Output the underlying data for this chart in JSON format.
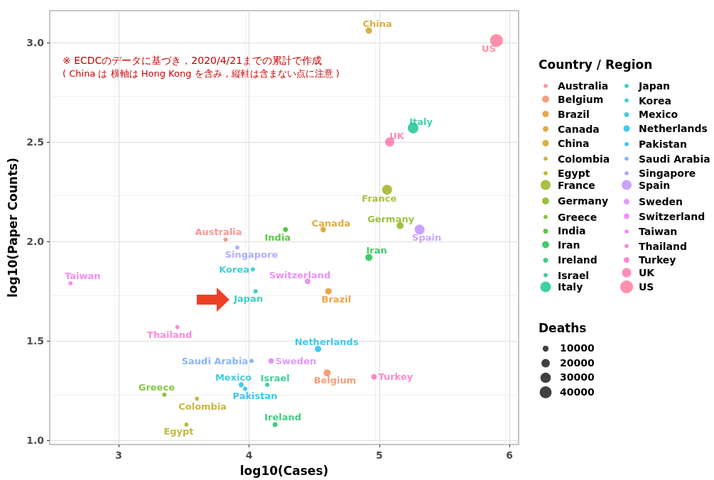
{
  "chart_data": {
    "type": "bubble",
    "xlabel": "log10(Cases)",
    "ylabel": "log10(Paper Counts)",
    "legend_title": "Country / Region",
    "annotations": [
      "※ ECDCのデータに基づき，2020/4/21までの累計で作成",
      "( China は 横軸は Hong Kong を含み，縦軸は含まない点に注意 )",
      "Deaths"
    ],
    "xlim": [
      2.47,
      6.07
    ],
    "xticks": [
      3,
      4,
      5,
      6
    ],
    "ylim": [
      0.98,
      3.16
    ],
    "yticks": [
      {
        "value": 1,
        "label": "1.0"
      },
      {
        "value": 1.5,
        "label": "1.5"
      },
      {
        "value": 2,
        "label": "2.0"
      },
      {
        "value": 2.5,
        "label": "2.5"
      },
      {
        "value": 3,
        "label": "3.0"
      }
    ],
    "grid": true,
    "legend": "right",
    "marker": "circle",
    "size_legend": [
      10000,
      20000,
      30000,
      40000
    ],
    "series": [
      {
        "name": "Australia",
        "color": "#F8766D",
        "x": [
          3.82
        ],
        "values": [
          2.01
        ],
        "sizes": [
          5100
        ]
      },
      {
        "name": "Belgium",
        "color": "#F07F4F",
        "x": [
          4.6
        ],
        "values": [
          1.34
        ],
        "sizes": [
          14000
        ]
      },
      {
        "name": "Brazil",
        "color": "#E68613",
        "x": [
          4.61
        ],
        "values": [
          1.75
        ],
        "sizes": [
          11500
        ]
      },
      {
        "name": "Canada",
        "color": "#DA8F00",
        "x": [
          4.57
        ],
        "values": [
          2.06
        ],
        "sizes": [
          9000
        ]
      },
      {
        "name": "China",
        "color": "#CD9600",
        "x": [
          4.92
        ],
        "values": [
          3.06
        ],
        "sizes": [
          11500
        ]
      },
      {
        "name": "Colombia",
        "color": "#BE9C00",
        "x": [
          3.6
        ],
        "values": [
          1.21
        ],
        "sizes": [
          5100
        ]
      },
      {
        "name": "Egypt",
        "color": "#ABA300",
        "x": [
          3.52
        ],
        "values": [
          1.08
        ],
        "sizes": [
          5100
        ]
      },
      {
        "name": "France",
        "color": "#96A900",
        "x": [
          5.06
        ],
        "values": [
          2.26
        ],
        "sizes": [
          28000
        ]
      },
      {
        "name": "Germany",
        "color": "#7CAE00",
        "x": [
          5.16
        ],
        "values": [
          2.08
        ],
        "sizes": [
          14000
        ]
      },
      {
        "name": "Greece",
        "color": "#5BB300",
        "x": [
          3.35
        ],
        "values": [
          1.23
        ],
        "sizes": [
          5100
        ]
      },
      {
        "name": "India",
        "color": "#1EB600",
        "x": [
          4.28
        ],
        "values": [
          2.06
        ],
        "sizes": [
          7000
        ]
      },
      {
        "name": "Iran",
        "color": "#00B93A",
        "x": [
          4.92
        ],
        "values": [
          1.92
        ],
        "sizes": [
          14000
        ]
      },
      {
        "name": "Ireland",
        "color": "#00BC59",
        "x": [
          4.2
        ],
        "values": [
          1.08
        ],
        "sizes": [
          7000
        ]
      },
      {
        "name": "Israel",
        "color": "#00BE71",
        "x": [
          4.14
        ],
        "values": [
          1.28
        ],
        "sizes": [
          5100
        ]
      },
      {
        "name": "Italy",
        "color": "#00C087",
        "x": [
          5.26
        ],
        "values": [
          2.57
        ],
        "sizes": [
          32000
        ]
      },
      {
        "name": "Japan",
        "color": "#00C0AF",
        "x": [
          4.05
        ],
        "values": [
          1.75
        ],
        "sizes": [
          5100
        ]
      },
      {
        "name": "Korea",
        "color": "#00BFC4",
        "x": [
          4.03
        ],
        "values": [
          1.86
        ],
        "sizes": [
          5100
        ]
      },
      {
        "name": "Mexico",
        "color": "#00BCD8",
        "x": [
          3.94
        ],
        "values": [
          1.28
        ],
        "sizes": [
          7000
        ]
      },
      {
        "name": "Netherlands",
        "color": "#00B8E7",
        "x": [
          4.53
        ],
        "values": [
          1.46
        ],
        "sizes": [
          11500
        ]
      },
      {
        "name": "Pakistan",
        "color": "#00B0F6",
        "x": [
          3.97
        ],
        "values": [
          1.26
        ],
        "sizes": [
          5100
        ]
      },
      {
        "name": "Saudi Arabia",
        "color": "#619CFF",
        "x": [
          4.02
        ],
        "values": [
          1.4
        ],
        "sizes": [
          5100
        ]
      },
      {
        "name": "Singapore",
        "color": "#9590FF",
        "x": [
          3.91
        ],
        "values": [
          1.97
        ],
        "sizes": [
          5100
        ]
      },
      {
        "name": "Spain",
        "color": "#B983FF",
        "x": [
          5.31
        ],
        "values": [
          2.06
        ],
        "sizes": [
          28000
        ]
      },
      {
        "name": "Sweden",
        "color": "#D575FE",
        "x": [
          4.17
        ],
        "values": [
          1.4
        ],
        "sizes": [
          9000
        ]
      },
      {
        "name": "Switzerland",
        "color": "#E76BF3",
        "x": [
          4.45
        ],
        "values": [
          1.8
        ],
        "sizes": [
          9000
        ]
      },
      {
        "name": "Taiwan",
        "color": "#F365E6",
        "x": [
          2.63
        ],
        "values": [
          1.79
        ],
        "sizes": [
          5100
        ]
      },
      {
        "name": "Thailand",
        "color": "#FD61D1",
        "x": [
          3.45
        ],
        "values": [
          1.57
        ],
        "sizes": [
          5100
        ]
      },
      {
        "name": "Turkey",
        "color": "#FF62BC",
        "x": [
          4.96
        ],
        "values": [
          1.32
        ],
        "sizes": [
          9000
        ]
      },
      {
        "name": "UK",
        "color": "#FF67A4",
        "x": [
          5.08
        ],
        "values": [
          2.5
        ],
        "sizes": [
          24000
        ]
      },
      {
        "name": "US",
        "color": "#FF6C91",
        "x": [
          5.9
        ],
        "values": [
          3.01
        ],
        "sizes": [
          46000
        ]
      }
    ]
  }
}
